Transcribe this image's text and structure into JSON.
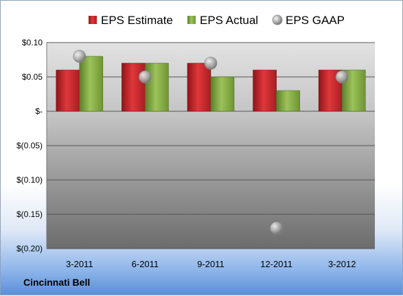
{
  "company": "Cincinnati Bell",
  "colors": {
    "estimate": "#c0282c",
    "actual": "#86ad45",
    "gaap": "#a9a9a9"
  },
  "chart_data": {
    "type": "bar",
    "categories": [
      "3-2011",
      "6-2011",
      "9-2011",
      "12-2011",
      "3-2012"
    ],
    "series": [
      {
        "name": "EPS Estimate",
        "type": "bar",
        "values": [
          0.06,
          0.07,
          0.07,
          0.06,
          0.06
        ]
      },
      {
        "name": "EPS Actual",
        "type": "bar",
        "values": [
          0.08,
          0.07,
          0.05,
          0.03,
          0.06
        ]
      },
      {
        "name": "EPS GAAP",
        "type": "scatter",
        "values": [
          0.08,
          0.05,
          0.07,
          -0.17,
          0.05
        ]
      }
    ],
    "ylim": [
      -0.2,
      0.1
    ],
    "yticks": [
      {
        "value": 0.1,
        "label": "$0.10"
      },
      {
        "value": 0.05,
        "label": "$0.05"
      },
      {
        "value": 0,
        "label": "$-"
      },
      {
        "value": -0.05,
        "label": "$(0.05)"
      },
      {
        "value": -0.1,
        "label": "$(0.10)"
      },
      {
        "value": -0.15,
        "label": "$(0.15)"
      },
      {
        "value": -0.2,
        "label": "$(0.20)"
      }
    ],
    "grid": true,
    "legend_position": "top"
  }
}
